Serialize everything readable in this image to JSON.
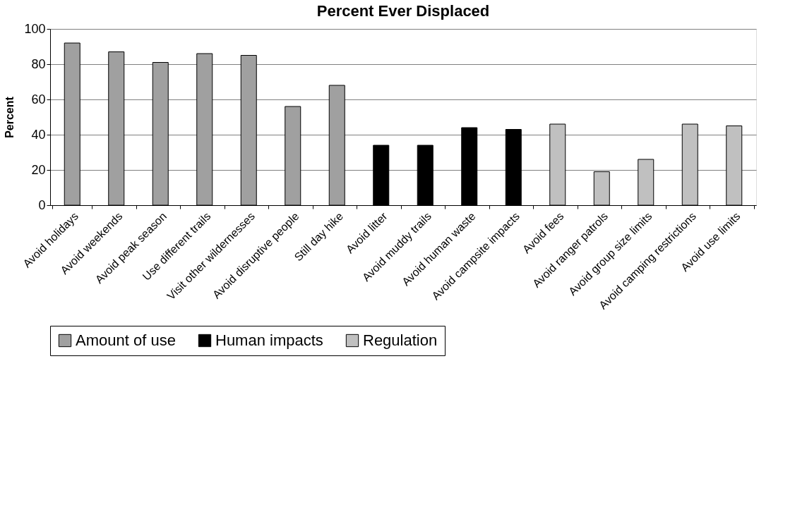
{
  "chart_data": {
    "type": "bar",
    "title": "Percent Ever Displaced",
    "ylabel": "Percent",
    "categories": [
      "Avoid holidays",
      "Avoid weekends",
      "Avoid peak season",
      "Use different trails",
      "Visit other wildernesses",
      "Avoid disruptive people",
      "Still day hike",
      "Avoid litter",
      "Avoid muddy trails",
      "Avoid human waste",
      "Avoid campsite impacts",
      "Avoid fees",
      "Avoid ranger patrols",
      "Avoid group size limits",
      "Avoid camping restrictions",
      "Avoid use limits"
    ],
    "series": [
      {
        "name": "Amount of use",
        "color": "#a0a0a0",
        "values": [
          92,
          87,
          81,
          86,
          85,
          56,
          68,
          null,
          null,
          null,
          null,
          null,
          null,
          null,
          null,
          null
        ]
      },
      {
        "name": "Human impacts",
        "color": "#000000",
        "values": [
          null,
          null,
          null,
          null,
          null,
          null,
          null,
          34,
          34,
          44,
          43,
          null,
          null,
          null,
          null,
          null
        ]
      },
      {
        "name": "Regulation",
        "color": "#c0c0c0",
        "values": [
          null,
          null,
          null,
          null,
          null,
          null,
          null,
          null,
          null,
          null,
          null,
          46,
          19,
          26,
          46,
          45
        ]
      }
    ],
    "ylim": [
      0,
      100
    ],
    "yticks": [
      0,
      20,
      40,
      60,
      80,
      100
    ],
    "grid": "y",
    "legend": "bottom"
  }
}
